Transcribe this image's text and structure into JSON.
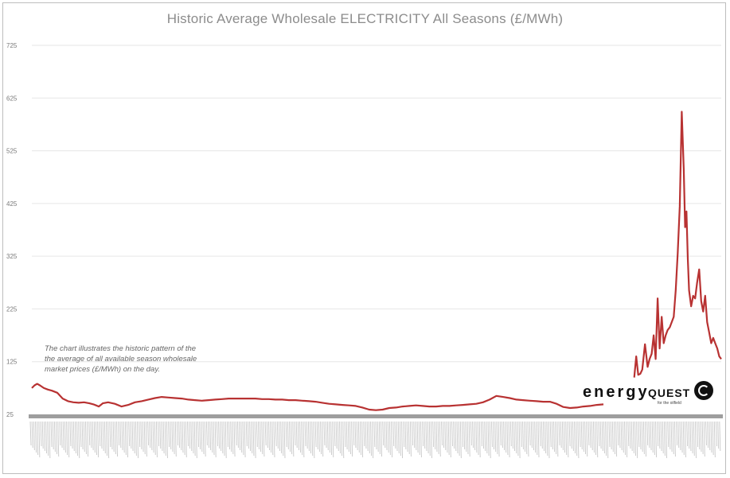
{
  "chart_data": {
    "type": "line",
    "title": "Historic Average Wholesale ELECTRICITY All Seasons (£/MWh)",
    "xlabel": "",
    "ylabel": "",
    "ylim": [
      25,
      725
    ],
    "yticks": [
      25,
      125,
      225,
      325,
      425,
      525,
      625,
      725
    ],
    "grid": true,
    "legend": "none",
    "colors": {
      "line": "#b83232",
      "grid": "#e6e6e6",
      "axis": "#9e9e9e"
    },
    "annotation": "The chart illustrates the historic pattern of the the average of all available season wholesale market prices (£/MWh) on the day.",
    "series": [
      {
        "segments": [
          {
            "x": [
              0,
              0.4,
              0.8,
              1.2,
              1.8,
              2.4,
              3.0,
              3.8,
              4.6,
              5.4,
              6.2,
              7.0,
              7.8,
              8.6,
              9.2,
              9.6,
              10.0,
              10.6,
              11.4,
              12.4,
              13.4,
              14.4,
              15.4,
              16.4,
              17.4,
              18.4,
              19.4,
              20.4,
              21.4,
              22.4,
              23.4,
              24.4,
              25.4,
              26.4,
              27.4,
              28.4,
              29.4,
              30.4,
              31.4,
              32.4,
              33.4,
              34.4,
              35.4,
              36.4,
              37.4,
              38.4,
              39.4,
              40.4,
              41.4,
              42.4,
              43.4,
              44.4,
              45.4,
              46.4,
              47.4,
              48.4,
              49.4,
              50.4,
              51.4,
              52.4,
              53.4,
              54.4,
              55.4,
              56.4,
              57.4,
              58.4,
              59.4,
              60.4,
              61.4,
              62.4,
              63.4,
              64.4,
              65.4,
              66.4,
              67.4,
              68.4,
              69.4,
              70.4,
              71.4,
              72.4,
              73.4,
              74.4,
              75.4,
              76.4,
              77.4,
              78.4,
              79.4,
              80.4,
              81.4,
              82.4,
              83.4,
              84.4,
              85.4
            ],
            "y": [
              75,
              80,
              83,
              80,
              75,
              72,
              70,
              66,
              55,
              50,
              48,
              47,
              48,
              46,
              44,
              42,
              40,
              46,
              48,
              45,
              40,
              43,
              48,
              50,
              53,
              56,
              58,
              57,
              56,
              55,
              53,
              52,
              51,
              52,
              53,
              54,
              55,
              55,
              55,
              55,
              55,
              54,
              54,
              53,
              53,
              52,
              52,
              51,
              50,
              49,
              47,
              45,
              44,
              43,
              42,
              41,
              38,
              34,
              33,
              34,
              37,
              38,
              40,
              41,
              42,
              41,
              40,
              40,
              41,
              41,
              42,
              43,
              44,
              45,
              48,
              53,
              60,
              58,
              56,
              53,
              52,
              51,
              50,
              49,
              49,
              45,
              39,
              37,
              38,
              40,
              41,
              43,
              44
            ]
          },
          {
            "x": [
              90.0,
              90.3,
              90.6,
              90.9,
              91.2,
              91.6,
              92.0,
              92.3,
              92.6,
              92.9,
              93.2,
              93.5,
              93.8,
              94.1,
              94.4,
              94.7,
              95.0,
              95.3,
              95.6,
              95.9,
              96.2,
              96.5,
              96.8,
              97.1,
              97.4,
              97.6,
              97.8,
              98.0,
              98.2,
              98.5,
              98.8,
              99.1,
              99.4,
              99.7,
              100.0,
              100.3,
              100.6,
              100.9,
              101.2,
              101.5,
              101.8,
              102.1,
              102.4,
              102.7,
              103.0
            ],
            "y": [
              95,
              135,
              100,
              102,
              110,
              158,
              115,
              130,
              140,
              175,
              130,
              245,
              150,
              210,
              160,
              175,
              185,
              190,
              200,
              210,
              260,
              330,
              420,
              599,
              490,
              380,
              410,
              320,
              260,
              230,
              250,
              245,
              275,
              300,
              240,
              220,
              250,
              200,
              180,
              160,
              170,
              160,
              150,
              135,
              130
            ]
          }
        ]
      }
    ],
    "x_tick_count": 400
  }
}
